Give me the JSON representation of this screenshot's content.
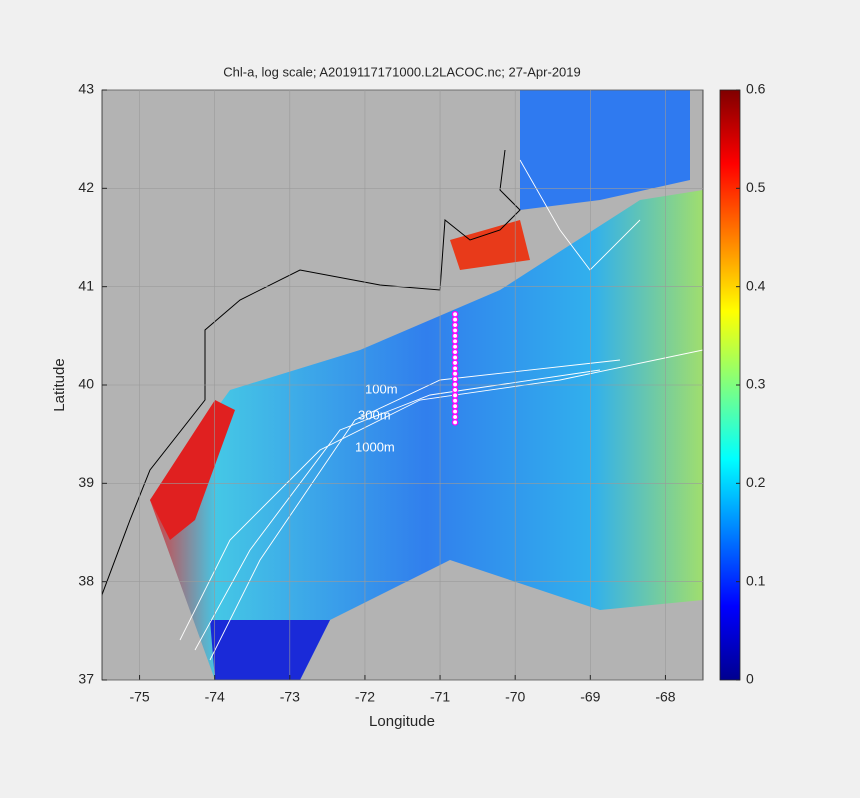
{
  "chart_data": {
    "type": "map",
    "title": "Chl-a, log scale; A2019117171000.L2LACOC.nc; 27-Apr-2019",
    "xlabel": "Longitude",
    "ylabel": "Latitude",
    "xlim": [
      -75.5,
      -67.5
    ],
    "xticks": [
      -75,
      -74,
      -73,
      -72,
      -71,
      -70,
      -69,
      -68
    ],
    "ylim": [
      37,
      43
    ],
    "yticks": [
      37,
      38,
      39,
      40,
      41,
      42,
      43
    ],
    "grid": true,
    "colorbar": {
      "lim": [
        0,
        0.6
      ],
      "ticks": [
        0,
        0.1,
        0.2,
        0.3,
        0.4,
        0.5,
        0.6
      ]
    },
    "annotations": [
      "100m",
      "300m",
      "1000m"
    ],
    "series": [
      {
        "color": "#ff00ff",
        "x": [
          -70.8,
          -70.8,
          -70.8,
          -70.8,
          -70.8,
          -70.8,
          -70.8,
          -70.8,
          -70.8,
          -70.8,
          -70.8,
          -70.8,
          -70.8,
          -70.8,
          -70.8,
          -70.8,
          -70.8,
          -70.8,
          -70.8,
          -70.8,
          -70.8
        ],
        "values": [
          39.62,
          39.675,
          39.73,
          39.785,
          39.84,
          39.895,
          39.95,
          40.005,
          40.06,
          40.115,
          40.17,
          40.225,
          40.28,
          40.335,
          40.39,
          40.445,
          40.5,
          40.555,
          40.61,
          40.665,
          40.72
        ]
      }
    ]
  }
}
